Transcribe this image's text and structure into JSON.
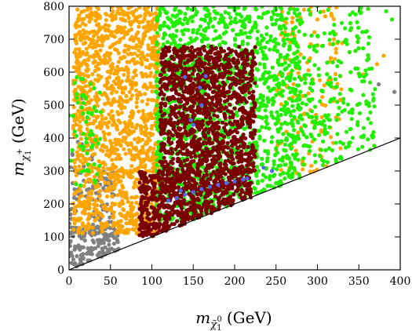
{
  "chart_data": {
    "type": "scatter",
    "title": "",
    "xlabel": {
      "symbol": "m",
      "sub": "χ̃",
      "subsup": "0",
      "subsub": "1",
      "unit": "(GeV)"
    },
    "ylabel": {
      "symbol": "m",
      "sub": "χ",
      "subsup": "+",
      "subsub": "1",
      "unit": "(GeV)"
    },
    "xlim": [
      0,
      400
    ],
    "ylim": [
      0,
      800
    ],
    "xticks": [
      "0",
      "50",
      "100",
      "150",
      "200",
      "250",
      "300",
      "350",
      "400"
    ],
    "yticks": [
      "0",
      "100",
      "200",
      "300",
      "400",
      "500",
      "600",
      "700",
      "800"
    ],
    "xtick_values": [
      0,
      50,
      100,
      150,
      200,
      250,
      300,
      350,
      400
    ],
    "ytick_values": [
      0,
      100,
      200,
      300,
      400,
      500,
      600,
      700,
      800
    ],
    "colors": {
      "gray": "#808080",
      "orange": "#ffa500",
      "green": "#22ee00",
      "maroon": "#7a0000",
      "blue": "#5566ee",
      "line": "#000000"
    },
    "reference_line": {
      "x": [
        0,
        400
      ],
      "y": [
        0,
        400
      ]
    },
    "series": [
      {
        "color": "gray",
        "regions": [
          {
            "x": [
              0,
              60
            ],
            "y": [
              0,
              130
            ],
            "n": 180
          },
          {
            "x": [
              0,
              30
            ],
            "y": [
              100,
              400
            ],
            "n": 60
          },
          {
            "x": [
              30,
              55
            ],
            "y": [
              100,
              300
            ],
            "n": 70
          }
        ],
        "points": [
          [
            22,
            770
          ],
          [
            374,
            563
          ],
          [
            393,
            540
          ],
          [
            28,
            345
          ],
          [
            15,
            520
          ]
        ]
      },
      {
        "color": "orange",
        "regions": [
          {
            "x": [
              5,
              110
            ],
            "y": [
              110,
              800
            ],
            "n": 1400
          },
          {
            "x": [
              250,
              330
            ],
            "y": [
              200,
              800
            ],
            "n": 160
          }
        ],
        "points": [
          [
            355,
            593
          ],
          [
            372,
            624
          ],
          [
            380,
            650
          ],
          [
            300,
            760
          ],
          [
            320,
            700
          ]
        ]
      },
      {
        "color": "green",
        "regions": [
          {
            "x": [
              105,
              280
            ],
            "y": [
              150,
              800
            ],
            "n": 1500
          },
          {
            "x": [
              270,
              370
            ],
            "y": [
              300,
              800
            ],
            "n": 280
          },
          {
            "x": [
              0,
              40
            ],
            "y": [
              250,
              600
            ],
            "n": 60
          }
        ],
        "points": [
          [
            383,
            785
          ],
          [
            390,
            760
          ]
        ]
      },
      {
        "color": "maroon",
        "regions": [
          {
            "x": [
              85,
              220
            ],
            "y": [
              100,
              300
            ],
            "n": 900
          },
          {
            "x": [
              110,
              225
            ],
            "y": [
              300,
              680
            ],
            "n": 1200
          }
        ],
        "points": []
      },
      {
        "color": "blue",
        "regions": [],
        "points": [
          [
            120,
            210
          ],
          [
            130,
            218
          ],
          [
            140,
            228
          ],
          [
            150,
            236
          ],
          [
            160,
            245
          ],
          [
            170,
            252
          ],
          [
            180,
            258
          ],
          [
            190,
            263
          ],
          [
            200,
            268
          ],
          [
            210,
            274
          ],
          [
            215,
            277
          ],
          [
            135,
            240
          ],
          [
            140,
            585
          ],
          [
            165,
            588
          ],
          [
            158,
            553
          ],
          [
            147,
            455
          ],
          [
            150,
            440
          ],
          [
            160,
            500
          ],
          [
            245,
            300
          ],
          [
            235,
            310
          ]
        ]
      }
    ]
  }
}
